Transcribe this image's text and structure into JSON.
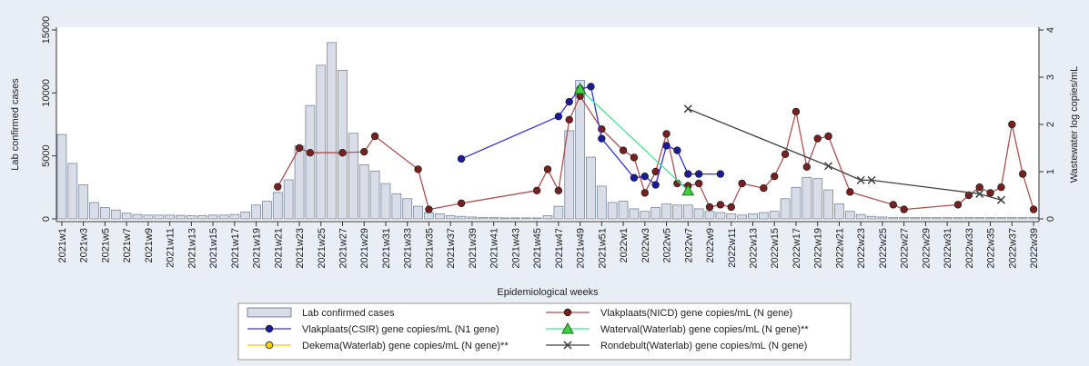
{
  "chart_data": {
    "type": "bar",
    "ylabel": "Lab confirmed cases",
    "y2label": "Wastewater log copies/mL",
    "xlabel": "Epidemiological weeks",
    "legend": "bottom",
    "ylim": [
      0,
      15000
    ],
    "yticks": [
      0,
      5000,
      10000,
      15000
    ],
    "y2lim": [
      0,
      4
    ],
    "y2ticks": [
      0,
      1,
      2,
      3,
      4
    ],
    "categories": [
      "2021w1",
      null,
      "2021w3",
      null,
      "2021w5",
      null,
      "2021w7",
      null,
      "2021w9",
      null,
      "2021w11",
      null,
      "2021w13",
      null,
      "2021w15",
      null,
      "2021w17",
      null,
      "2021w19",
      null,
      "2021w21",
      null,
      "2021w23",
      null,
      "2021w25",
      null,
      "2021w27",
      null,
      "2021w29",
      null,
      "2021w31",
      null,
      "2021w33",
      null,
      "2021w35",
      null,
      "2021w37",
      null,
      "2021w39",
      null,
      "2021w41",
      null,
      "2021w43",
      null,
      "2021w45",
      null,
      "2021w47",
      null,
      "2021w49",
      null,
      "2021w51",
      null,
      "2022w1",
      null,
      "2022w3",
      null,
      "2022w5",
      null,
      "2022w7",
      null,
      "2022w9",
      null,
      "2022w11",
      null,
      "2022w13",
      null,
      "2022w15",
      null,
      "2022w17",
      null,
      "2022w19",
      null,
      "2022w21",
      null,
      "2022w23",
      null,
      "2022w25",
      null,
      "2022w27",
      null,
      "2022w29",
      null,
      "2022w31",
      null,
      "2022w33",
      null,
      "2022w35",
      null,
      "2022w37",
      null,
      "2022w39"
    ],
    "series": [
      {
        "name": "Lab confirmed cases",
        "type": "bar",
        "color": "#d9dde8",
        "stroke": "#7a879b",
        "values": [
          6700,
          4400,
          2700,
          1300,
          900,
          700,
          450,
          350,
          300,
          300,
          300,
          280,
          250,
          250,
          300,
          300,
          350,
          550,
          1100,
          1400,
          2100,
          3100,
          5800,
          9000,
          12200,
          14000,
          11800,
          6800,
          4300,
          3800,
          2800,
          2000,
          1600,
          1000,
          500,
          400,
          250,
          200,
          150,
          120,
          100,
          80,
          80,
          80,
          80,
          250,
          1000,
          7000,
          11000,
          4900,
          2600,
          1300,
          1400,
          800,
          600,
          900,
          1200,
          1100,
          1100,
          800,
          600,
          500,
          400,
          300,
          400,
          500,
          600,
          1600,
          2500,
          3300,
          3200,
          2300,
          1200,
          600,
          350,
          200,
          150,
          100,
          100,
          100,
          100,
          100,
          100,
          100,
          100,
          100,
          100,
          100,
          100,
          100,
          100
        ]
      },
      {
        "name": "Vlakplaats(NICD) gene copies/mL (N gene)",
        "type": "line",
        "axis": "y2",
        "color": "#b05050",
        "marker": "circle",
        "marker_color": "#7a1f1f",
        "values": [
          null,
          null,
          null,
          null,
          null,
          null,
          null,
          null,
          null,
          null,
          null,
          null,
          null,
          null,
          null,
          null,
          null,
          null,
          null,
          null,
          0.68,
          null,
          1.5,
          1.4,
          null,
          null,
          1.4,
          null,
          1.42,
          1.75,
          null,
          null,
          null,
          1.05,
          0.2,
          null,
          null,
          0.33,
          null,
          null,
          null,
          null,
          null,
          null,
          0.6,
          1.05,
          0.6,
          2.1,
          2.6,
          null,
          1.9,
          null,
          1.45,
          1.3,
          0.55,
          1.0,
          1.8,
          0.75,
          0.7,
          0.75,
          0.25,
          0.3,
          0.25,
          0.75,
          null,
          0.65,
          0.9,
          1.37,
          2.27,
          1.1,
          1.7,
          1.75,
          null,
          0.57,
          null,
          null,
          null,
          0.3,
          0.2,
          null,
          null,
          null,
          null,
          0.3,
          0.5,
          0.67,
          0.55,
          0.67,
          2.0,
          0.95,
          0.2
        ]
      },
      {
        "name": "Vlakplaats(CSIR) gene copies/mL (N1 gene)",
        "type": "line",
        "axis": "y2",
        "color": "#3030e0",
        "marker": "circle",
        "marker_color": "#1a1aa0",
        "values": [
          null,
          null,
          null,
          null,
          null,
          null,
          null,
          null,
          null,
          null,
          null,
          null,
          null,
          null,
          null,
          null,
          null,
          null,
          null,
          null,
          null,
          null,
          null,
          null,
          null,
          null,
          null,
          null,
          null,
          null,
          null,
          null,
          null,
          null,
          null,
          null,
          null,
          1.27,
          null,
          null,
          null,
          null,
          null,
          null,
          null,
          null,
          2.17,
          2.48,
          2.75,
          2.8,
          1.7,
          null,
          null,
          0.87,
          0.9,
          0.72,
          1.55,
          1.45,
          0.95,
          0.95,
          null,
          0.95,
          null,
          null,
          null,
          null,
          null,
          null,
          null,
          null,
          null,
          null,
          null,
          null,
          null,
          null,
          null,
          null,
          null,
          null,
          null,
          null,
          null,
          null,
          null,
          null,
          null,
          null,
          null,
          null,
          null
        ]
      },
      {
        "name": "Waterval(Waterlab) gene copies/mL (N gene)**",
        "type": "line",
        "axis": "y2",
        "color": "#40e890",
        "marker": "triangle",
        "marker_color": "#40d040",
        "values": [
          null,
          null,
          null,
          null,
          null,
          null,
          null,
          null,
          null,
          null,
          null,
          null,
          null,
          null,
          null,
          null,
          null,
          null,
          null,
          null,
          null,
          null,
          null,
          null,
          null,
          null,
          null,
          null,
          null,
          null,
          null,
          null,
          null,
          null,
          null,
          null,
          null,
          null,
          null,
          null,
          null,
          null,
          null,
          null,
          null,
          null,
          null,
          null,
          2.75,
          null,
          null,
          null,
          null,
          null,
          null,
          null,
          null,
          null,
          0.6,
          null,
          null,
          null,
          null,
          null,
          null,
          null,
          null,
          null,
          null,
          null,
          null,
          null,
          null,
          null,
          null,
          null,
          null,
          null,
          null,
          null,
          null,
          null,
          null,
          null,
          null,
          null,
          null,
          null,
          null,
          null,
          null
        ]
      },
      {
        "name": "Dekema(Waterlab) gene copies/mL (N gene)**",
        "type": "line",
        "axis": "y2",
        "color": "#f0d000",
        "marker": "circle",
        "marker_color": "#f0d000",
        "values": [
          null,
          null,
          null,
          null,
          null,
          null,
          null,
          null,
          null,
          null,
          null,
          null,
          null,
          null,
          null,
          null,
          null,
          null,
          null,
          null,
          null,
          null,
          null,
          null,
          null,
          null,
          null,
          null,
          null,
          null,
          null,
          null,
          null,
          null,
          null,
          null,
          null,
          null,
          null,
          null,
          null,
          null,
          null,
          null,
          null,
          null,
          null,
          null,
          null,
          null,
          null,
          null,
          null,
          null,
          null,
          null,
          null,
          null,
          null,
          null,
          null,
          null,
          null,
          null,
          null,
          null,
          null,
          null,
          null,
          null,
          null,
          null,
          null,
          null,
          null,
          null,
          null,
          null,
          null,
          null,
          null,
          null,
          null,
          null,
          null,
          null,
          null,
          null,
          null,
          null,
          null
        ]
      },
      {
        "name": "Rondebult(Waterlab) gene copies/mL (N gene)",
        "type": "line",
        "axis": "y2",
        "color": "#404040",
        "marker": "x",
        "marker_color": "#404040",
        "values": [
          null,
          null,
          null,
          null,
          null,
          null,
          null,
          null,
          null,
          null,
          null,
          null,
          null,
          null,
          null,
          null,
          null,
          null,
          null,
          null,
          null,
          null,
          null,
          null,
          null,
          null,
          null,
          null,
          null,
          null,
          null,
          null,
          null,
          null,
          null,
          null,
          null,
          null,
          null,
          null,
          null,
          null,
          null,
          null,
          null,
          null,
          null,
          null,
          null,
          null,
          null,
          null,
          null,
          null,
          null,
          null,
          null,
          null,
          2.33,
          null,
          null,
          null,
          null,
          null,
          null,
          null,
          null,
          null,
          null,
          null,
          null,
          1.12,
          null,
          null,
          0.82,
          0.82,
          null,
          null,
          null,
          null,
          null,
          null,
          null,
          null,
          null,
          0.53,
          null,
          0.4,
          null,
          null,
          null
        ]
      }
    ]
  }
}
